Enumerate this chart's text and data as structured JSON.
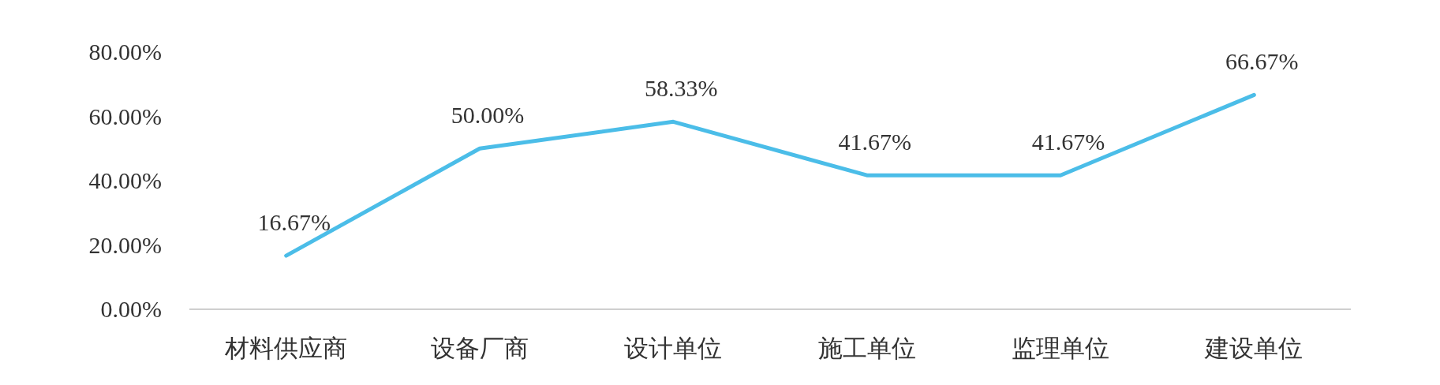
{
  "chart_data": {
    "type": "line",
    "categories": [
      "材料供应商",
      "设备厂商",
      "设计单位",
      "施工单位",
      "监理单位",
      "建设单位"
    ],
    "series": [
      {
        "color": "#4bbde8",
        "values": [
          16.67,
          50.0,
          58.33,
          41.67,
          41.67,
          66.67
        ],
        "value_labels": [
          "16.67%",
          "50.00%",
          "58.33%",
          "41.67%",
          "41.67%",
          "66.67%"
        ]
      }
    ],
    "ylim": [
      0,
      80
    ],
    "yticks": [
      {
        "value": 0,
        "label": "0.00%"
      },
      {
        "value": 20,
        "label": "20.00%"
      },
      {
        "value": 40,
        "label": "40.00%"
      },
      {
        "value": 60,
        "label": "60.00%"
      },
      {
        "value": 80,
        "label": "80.00%"
      }
    ],
    "grid": false,
    "marker": "none",
    "line_style": "solid"
  }
}
